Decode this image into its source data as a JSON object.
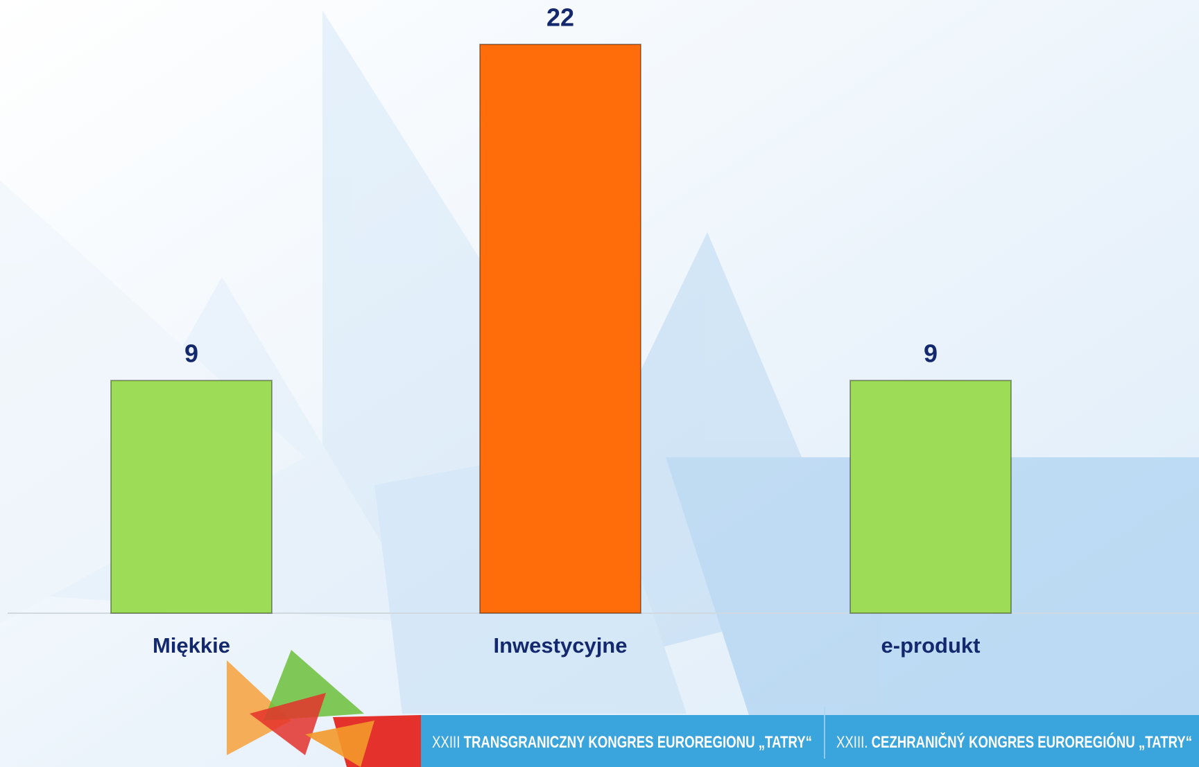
{
  "chart_data": {
    "type": "bar",
    "categories": [
      "Miękkie",
      "Inwestycyjne",
      "e-produkt"
    ],
    "values": [
      9,
      22,
      9
    ],
    "colors": [
      "#9ddc57",
      "#ff6d0a",
      "#9ddc57"
    ]
  },
  "footer": {
    "left": {
      "prefix": "XXIII",
      "title": "TRANSGRANICZNY KONGRES EUROREGIONU „TATRY“"
    },
    "right": {
      "prefix": "XXIII.",
      "title": "CEZHRANIČNÝ KONGRES EUROREGIÓNU „TATRY“"
    }
  }
}
